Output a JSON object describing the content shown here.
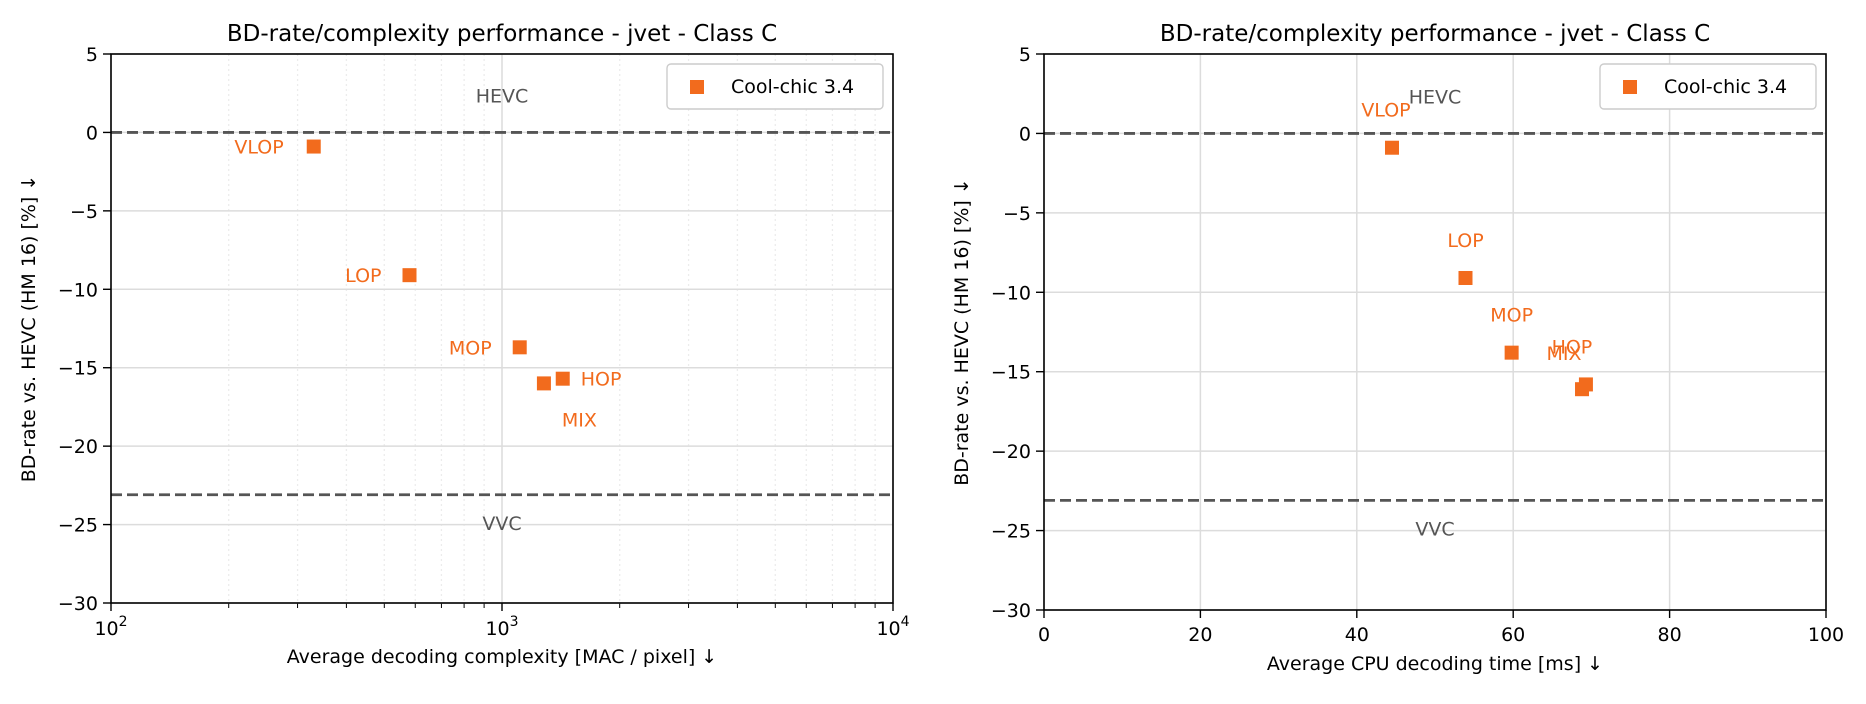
{
  "chart_data": [
    {
      "type": "scatter",
      "title": "BD-rate/complexity performance - jvet - Class C",
      "xlabel": "Average decoding complexity [MAC / pixel]  ↓",
      "ylabel": "BD-rate vs. HEVC (HM 16) [%]  ↓",
      "xscale": "log",
      "xlim": [
        100,
        10000
      ],
      "ylim": [
        -30,
        5
      ],
      "xticks": [
        100,
        1000,
        10000
      ],
      "yticks": [
        5,
        0,
        -5,
        -10,
        -15,
        -20,
        -25,
        -30
      ],
      "grid": true,
      "legend": {
        "position": "top-right",
        "entries": [
          "Cool-chic 3.4"
        ]
      },
      "series": [
        {
          "name": "Cool-chic 3.4",
          "color": "#f26b1d",
          "marker": "square",
          "points": [
            {
              "label": "VLOP",
              "x": 330,
              "y": -0.9
            },
            {
              "label": "LOP",
              "x": 580,
              "y": -9.1
            },
            {
              "label": "MOP",
              "x": 1110,
              "y": -13.7
            },
            {
              "label": "MIX",
              "x": 1280,
              "y": -16.0
            },
            {
              "label": "HOP",
              "x": 1430,
              "y": -15.7
            }
          ]
        }
      ],
      "reference_lines": [
        {
          "label": "HEVC",
          "y": 0
        },
        {
          "label": "VVC",
          "y": -23.1
        }
      ],
      "reference_color": "#555555"
    },
    {
      "type": "scatter",
      "title": "BD-rate/complexity performance - jvet - Class C",
      "xlabel": "Average CPU decoding time [ms]  ↓",
      "ylabel": "BD-rate vs. HEVC (HM 16) [%]  ↓",
      "xscale": "linear",
      "xlim": [
        0,
        100
      ],
      "ylim": [
        -30,
        5
      ],
      "xticks": [
        0,
        20,
        40,
        60,
        80,
        100
      ],
      "yticks": [
        5,
        0,
        -5,
        -10,
        -15,
        -20,
        -25,
        -30
      ],
      "grid": true,
      "legend": {
        "position": "top-right",
        "entries": [
          "Cool-chic 3.4"
        ]
      },
      "series": [
        {
          "name": "Cool-chic 3.4",
          "color": "#f26b1d",
          "marker": "square",
          "points": [
            {
              "label": "VLOP",
              "x": 44.5,
              "y": -0.9
            },
            {
              "label": "LOP",
              "x": 53.9,
              "y": -9.1
            },
            {
              "label": "MOP",
              "x": 59.8,
              "y": -13.8
            },
            {
              "label": "MIX",
              "x": 68.8,
              "y": -16.1
            },
            {
              "label": "HOP",
              "x": 69.3,
              "y": -15.8
            }
          ]
        }
      ],
      "reference_lines": [
        {
          "label": "HEVC",
          "y": 0
        },
        {
          "label": "VVC",
          "y": -23.1
        }
      ],
      "reference_color": "#555555"
    }
  ]
}
